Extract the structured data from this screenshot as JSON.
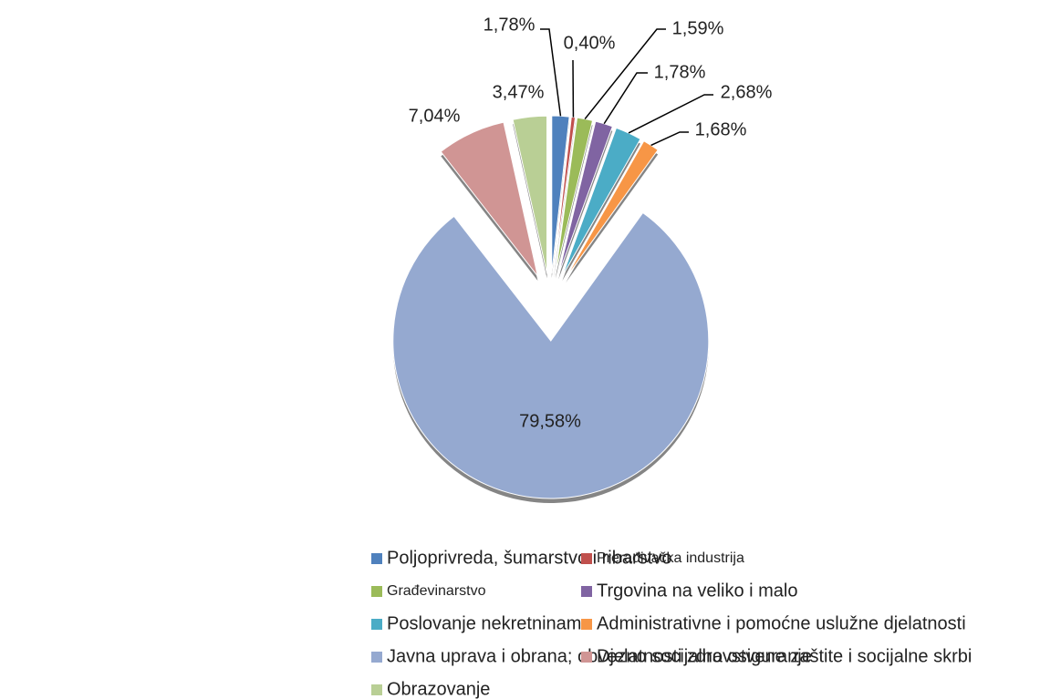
{
  "chart_data": {
    "type": "pie",
    "categories": [
      "Poljoprivreda, šumarstvo i ribarstvo",
      "Prerađivačka industrija",
      "Građevinarstvo",
      "Trgovina na veliko i malo",
      "Poslovanje nekretninama",
      "Administrativne i pomoćne uslužne djelatnosti",
      "Javna uprava i obrana; obvezno socijalno osiguranje",
      "Djelatnosti zdravstvene zaštite i socijalne skrbi",
      "Obrazovanje"
    ],
    "values": [
      1.78,
      0.4,
      1.59,
      1.78,
      2.68,
      1.68,
      79.58,
      7.04,
      3.47
    ],
    "value_labels": [
      "1,78%",
      "0,40%",
      "1,59%",
      "1,78%",
      "2,68%",
      "1,68%",
      "79,58%",
      "7,04%",
      "3,47%"
    ],
    "colors": [
      "#4f81bd",
      "#c0504d",
      "#9bbb59",
      "#8064a2",
      "#4bacc6",
      "#f79646",
      "#95a9d0",
      "#d09594",
      "#b9cf95"
    ],
    "legend": "bottom"
  }
}
